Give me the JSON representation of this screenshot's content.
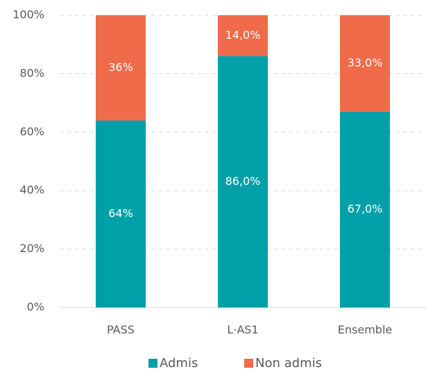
{
  "chart_data": {
    "type": "stacked_bar",
    "categories": [
      "PASS",
      "L·AS1",
      "Ensemble"
    ],
    "series": [
      {
        "name": "Admis",
        "color": "#00a0a8",
        "values": [
          64,
          86,
          67
        ],
        "value_labels": [
          "64%",
          "86,0%",
          "67,0%"
        ]
      },
      {
        "name": "Non admis",
        "color": "#ef6b4a",
        "values": [
          36,
          14,
          33
        ],
        "value_labels": [
          "36%",
          "14,0%",
          "33,0%"
        ]
      }
    ],
    "ylim": [
      0,
      100
    ],
    "yticks": [
      {
        "value": 0,
        "label": "0%"
      },
      {
        "value": 20,
        "label": "20%"
      },
      {
        "value": 40,
        "label": "40%"
      },
      {
        "value": 60,
        "label": "60%"
      },
      {
        "value": 80,
        "label": "80%"
      },
      {
        "value": 100,
        "label": "100%"
      }
    ],
    "grid": true,
    "legend": "bottom"
  }
}
